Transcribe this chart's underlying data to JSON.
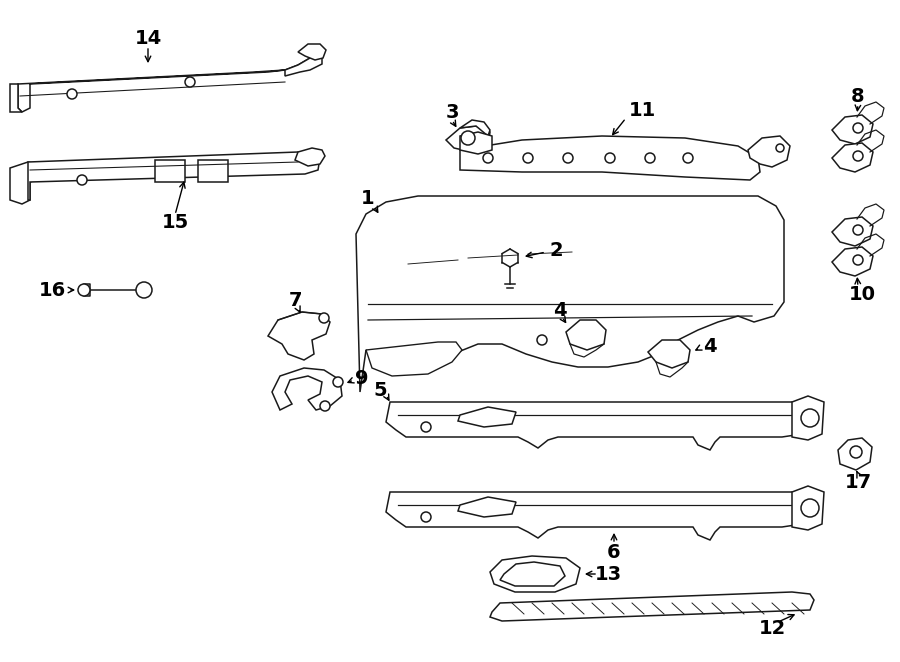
{
  "bg_color": "#ffffff",
  "lc": "#1a1a1a",
  "lw": 1.1,
  "font_size": 13,
  "bold_font_size": 14
}
